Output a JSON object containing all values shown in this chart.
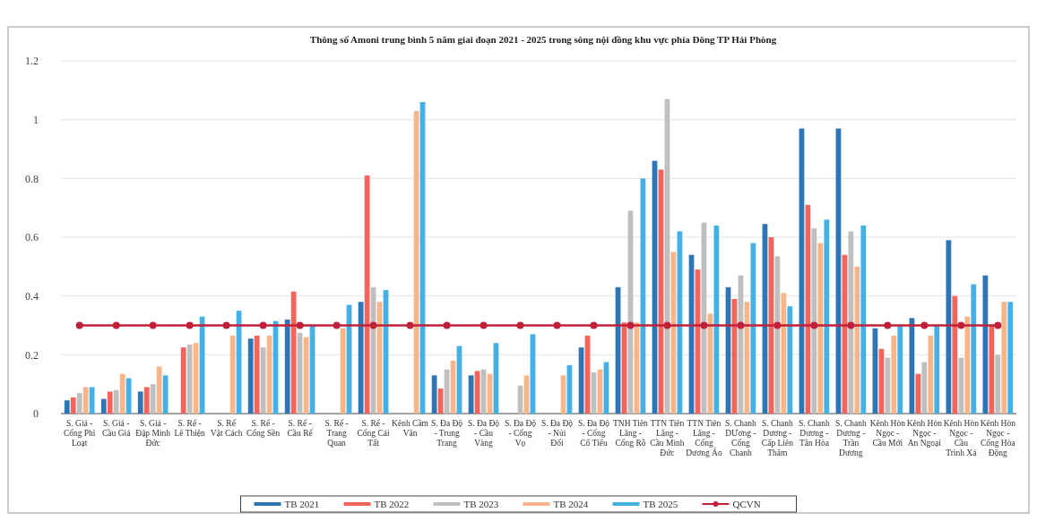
{
  "chart_data": {
    "type": "bar",
    "title": "Thông số Amoni trung bình 5 năm giai đoạn 2021 - 2025 trong sông nội đồng khu vực phía Đông TP Hải Phòng",
    "categories": [
      "S. Giá - Cống Phì Loạt",
      "S. Giá - Cầu Giá",
      "S. Giá - Đập Minh Đức",
      "S. Rế - Lê Thiện",
      "S. Rế Vật Cách",
      "S. Rế - Cống Sền",
      "S. Rế - Cầu Rế",
      "S. Rế - Trang Quan",
      "S. Rế - Cống Cái Tất",
      "Kênh Cầm Văn",
      "S. Đa Độ - Trung Trang",
      "S. Đa Độ - Cầu Vàng",
      "S. Đa Độ - Cống Vọ",
      "S. Đa Độ - Núi Đối",
      "S. Đa Độ - Cống Cổ Tiểu",
      "TNH Tiên Lãng - Cống Rỗ",
      "TTN Tiên Lãng - Cầu Minh Đức",
      "TTN Tiên Lãng - Cống Dương Áo",
      "S. Chanh DƯơng - Cống Chanh",
      "S. Chanh Dương - Cấp Liên Thâm",
      "S. Chanh Dương - Tân Hòa",
      "S. Chanh Dương - Trần Dương",
      "Kênh Hòn Ngọc - Cầu Mới",
      "Kênh Hòn Ngọc - An Ngoại",
      "Kênh Hòn Ngọc - Cầu Trình Xá",
      "Kênh Hòn Ngọc - Cống Hòa Động"
    ],
    "series": [
      {
        "name": "TB 2021",
        "color": "#2e75b6",
        "values": [
          0.045,
          0.05,
          0.075,
          null,
          null,
          0.255,
          0.32,
          null,
          0.38,
          null,
          0.13,
          0.13,
          null,
          null,
          0.225,
          0.43,
          0.86,
          0.54,
          0.43,
          0.645,
          0.97,
          0.97,
          0.29,
          0.325,
          0.59,
          0.47
        ]
      },
      {
        "name": "TB 2022",
        "color": "#f4645a",
        "values": [
          0.055,
          0.075,
          0.09,
          0.225,
          null,
          0.265,
          0.415,
          null,
          0.81,
          null,
          0.085,
          0.145,
          null,
          null,
          0.265,
          0.31,
          0.83,
          0.49,
          0.39,
          0.6,
          0.71,
          0.54,
          0.22,
          0.135,
          0.4,
          0.3
        ]
      },
      {
        "name": "TB 2023",
        "color": "#bfbfbf",
        "values": [
          0.07,
          0.08,
          0.1,
          0.235,
          null,
          0.225,
          0.275,
          null,
          0.43,
          null,
          0.15,
          0.15,
          0.095,
          null,
          0.14,
          0.69,
          1.07,
          0.65,
          0.47,
          0.535,
          0.63,
          0.62,
          0.19,
          0.175,
          0.19,
          0.2
        ]
      },
      {
        "name": "TB 2024",
        "color": "#f8b58a",
        "values": [
          0.09,
          0.135,
          0.16,
          0.24,
          0.265,
          0.265,
          0.26,
          0.29,
          0.38,
          1.03,
          0.18,
          0.135,
          0.13,
          0.13,
          0.15,
          0.31,
          0.55,
          0.34,
          0.38,
          0.41,
          0.58,
          0.5,
          0.265,
          0.265,
          0.33,
          0.38
        ]
      },
      {
        "name": "TB 2025",
        "color": "#45b0e5",
        "values": [
          0.09,
          0.12,
          0.13,
          0.33,
          0.35,
          0.315,
          0.3,
          0.37,
          0.42,
          1.06,
          0.23,
          0.24,
          0.27,
          0.165,
          0.175,
          0.8,
          0.62,
          0.64,
          0.58,
          0.365,
          0.66,
          0.64,
          0.3,
          0.3,
          0.44,
          0.38
        ]
      },
      {
        "name": "QCVN",
        "type": "line",
        "color": "#c0203a",
        "marker": "circle",
        "values": [
          0.3,
          0.3,
          0.3,
          0.3,
          0.3,
          0.3,
          0.3,
          0.3,
          0.3,
          0.3,
          0.3,
          0.3,
          0.3,
          0.3,
          0.3,
          0.3,
          0.3,
          0.3,
          0.3,
          0.3,
          0.3,
          0.3,
          0.3,
          0.3,
          0.3,
          0.3
        ]
      }
    ],
    "ylim": [
      0,
      1.2
    ],
    "yticks": [
      0,
      0.2,
      0.4,
      0.6,
      0.8,
      1,
      1.2
    ],
    "grid": "y",
    "legend": "bottom"
  }
}
